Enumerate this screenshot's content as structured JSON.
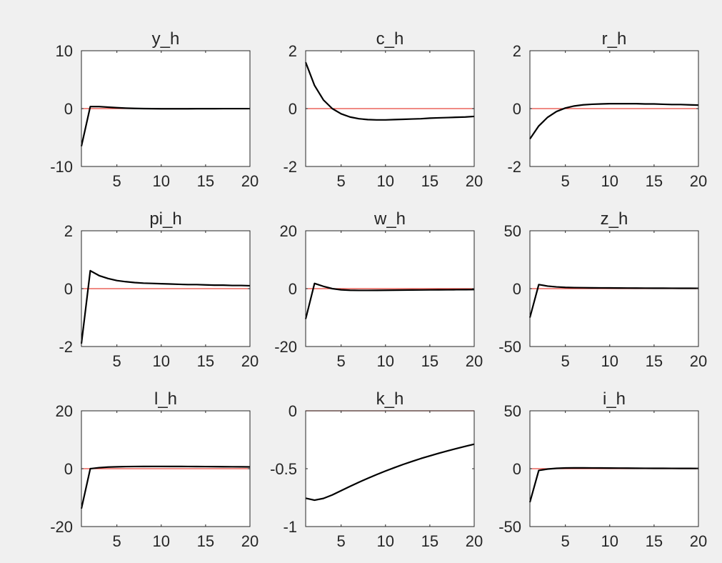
{
  "figure": {
    "background": "#f0f0f0",
    "axes_color": "#262626",
    "zero_line_color": "#e8443a",
    "series_color": "#000000"
  },
  "chart_data": [
    {
      "type": "line",
      "title": "y_h",
      "xlim": [
        1,
        20
      ],
      "ylim": [
        -10,
        10
      ],
      "xticks": [
        5,
        10,
        15,
        20
      ],
      "yticks": [
        -10,
        0,
        10
      ],
      "xtick_labels": [
        "5",
        "10",
        "15",
        "20"
      ],
      "ytick_labels": [
        "-10",
        "0",
        "10"
      ],
      "x": [
        1,
        2,
        3,
        4,
        5,
        6,
        7,
        8,
        9,
        10,
        11,
        12,
        13,
        14,
        15,
        16,
        17,
        18,
        19,
        20
      ],
      "series": [
        {
          "values": [
            -6.5,
            0.35,
            0.35,
            0.25,
            0.15,
            0.08,
            0.03,
            0.0,
            -0.02,
            -0.03,
            -0.03,
            -0.03,
            -0.03,
            -0.02,
            -0.02,
            -0.02,
            -0.01,
            -0.01,
            -0.01,
            -0.01
          ]
        },
        {
          "values": [
            0,
            0,
            0,
            0,
            0,
            0,
            0,
            0,
            0,
            0,
            0,
            0,
            0,
            0,
            0,
            0,
            0,
            0,
            0,
            0
          ],
          "role": "zero-line"
        }
      ]
    },
    {
      "type": "line",
      "title": "c_h",
      "xlim": [
        1,
        20
      ],
      "ylim": [
        -2,
        2
      ],
      "xticks": [
        5,
        10,
        15,
        20
      ],
      "yticks": [
        -2,
        0,
        2
      ],
      "xtick_labels": [
        "5",
        "10",
        "15",
        "20"
      ],
      "ytick_labels": [
        "-2",
        "0",
        "2"
      ],
      "x": [
        1,
        2,
        3,
        4,
        5,
        6,
        7,
        8,
        9,
        10,
        11,
        12,
        13,
        14,
        15,
        16,
        17,
        18,
        19,
        20
      ],
      "series": [
        {
          "values": [
            1.6,
            0.8,
            0.3,
            0.0,
            -0.18,
            -0.29,
            -0.35,
            -0.38,
            -0.39,
            -0.39,
            -0.38,
            -0.37,
            -0.36,
            -0.35,
            -0.33,
            -0.32,
            -0.31,
            -0.3,
            -0.29,
            -0.27
          ]
        },
        {
          "values": [
            0,
            0,
            0,
            0,
            0,
            0,
            0,
            0,
            0,
            0,
            0,
            0,
            0,
            0,
            0,
            0,
            0,
            0,
            0,
            0
          ],
          "role": "zero-line"
        }
      ]
    },
    {
      "type": "line",
      "title": "r_h",
      "xlim": [
        1,
        20
      ],
      "ylim": [
        -2,
        2
      ],
      "xticks": [
        5,
        10,
        15,
        20
      ],
      "yticks": [
        -2,
        0,
        2
      ],
      "xtick_labels": [
        "5",
        "10",
        "15",
        "20"
      ],
      "ytick_labels": [
        "-2",
        "0",
        "2"
      ],
      "x": [
        1,
        2,
        3,
        4,
        5,
        6,
        7,
        8,
        9,
        10,
        11,
        12,
        13,
        14,
        15,
        16,
        17,
        18,
        19,
        20
      ],
      "series": [
        {
          "values": [
            -1.05,
            -0.6,
            -0.3,
            -0.1,
            0.02,
            0.09,
            0.13,
            0.15,
            0.16,
            0.17,
            0.17,
            0.17,
            0.17,
            0.16,
            0.16,
            0.15,
            0.14,
            0.14,
            0.13,
            0.12
          ]
        },
        {
          "values": [
            0,
            0,
            0,
            0,
            0,
            0,
            0,
            0,
            0,
            0,
            0,
            0,
            0,
            0,
            0,
            0,
            0,
            0,
            0,
            0
          ],
          "role": "zero-line"
        }
      ]
    },
    {
      "type": "line",
      "title": "pi_h",
      "xlim": [
        1,
        20
      ],
      "ylim": [
        -2,
        2
      ],
      "xticks": [
        5,
        10,
        15,
        20
      ],
      "yticks": [
        -2,
        0,
        2
      ],
      "xtick_labels": [
        "5",
        "10",
        "15",
        "20"
      ],
      "ytick_labels": [
        "-2",
        "0",
        "2"
      ],
      "x": [
        1,
        2,
        3,
        4,
        5,
        6,
        7,
        8,
        9,
        10,
        11,
        12,
        13,
        14,
        15,
        16,
        17,
        18,
        19,
        20
      ],
      "series": [
        {
          "values": [
            -1.9,
            0.62,
            0.45,
            0.35,
            0.28,
            0.24,
            0.21,
            0.19,
            0.18,
            0.17,
            0.16,
            0.15,
            0.14,
            0.14,
            0.13,
            0.12,
            0.12,
            0.11,
            0.11,
            0.1
          ]
        },
        {
          "values": [
            0,
            0,
            0,
            0,
            0,
            0,
            0,
            0,
            0,
            0,
            0,
            0,
            0,
            0,
            0,
            0,
            0,
            0,
            0,
            0
          ],
          "role": "zero-line"
        }
      ]
    },
    {
      "type": "line",
      "title": "w_h",
      "xlim": [
        1,
        20
      ],
      "ylim": [
        -20,
        20
      ],
      "xticks": [
        5,
        10,
        15,
        20
      ],
      "yticks": [
        -20,
        0,
        20
      ],
      "xtick_labels": [
        "5",
        "10",
        "15",
        "20"
      ],
      "ytick_labels": [
        "-20",
        "0",
        "20"
      ],
      "x": [
        1,
        2,
        3,
        4,
        5,
        6,
        7,
        8,
        9,
        10,
        11,
        12,
        13,
        14,
        15,
        16,
        17,
        18,
        19,
        20
      ],
      "series": [
        {
          "values": [
            -10.5,
            1.8,
            0.8,
            0.0,
            -0.4,
            -0.55,
            -0.6,
            -0.6,
            -0.58,
            -0.55,
            -0.52,
            -0.5,
            -0.47,
            -0.45,
            -0.42,
            -0.4,
            -0.38,
            -0.36,
            -0.34,
            -0.32
          ]
        },
        {
          "values": [
            0,
            0,
            0,
            0,
            0,
            0,
            0,
            0,
            0,
            0,
            0,
            0,
            0,
            0,
            0,
            0,
            0,
            0,
            0,
            0
          ],
          "role": "zero-line"
        }
      ]
    },
    {
      "type": "line",
      "title": "z_h",
      "xlim": [
        1,
        20
      ],
      "ylim": [
        -50,
        50
      ],
      "xticks": [
        5,
        10,
        15,
        20
      ],
      "yticks": [
        -50,
        0,
        50
      ],
      "xtick_labels": [
        "5",
        "10",
        "15",
        "20"
      ],
      "ytick_labels": [
        "-50",
        "0",
        "50"
      ],
      "x": [
        1,
        2,
        3,
        4,
        5,
        6,
        7,
        8,
        9,
        10,
        11,
        12,
        13,
        14,
        15,
        16,
        17,
        18,
        19,
        20
      ],
      "series": [
        {
          "values": [
            -25,
            3.5,
            2.2,
            1.5,
            1.1,
            0.9,
            0.8,
            0.7,
            0.65,
            0.6,
            0.55,
            0.5,
            0.45,
            0.42,
            0.4,
            0.37,
            0.35,
            0.32,
            0.3,
            0.28
          ]
        },
        {
          "values": [
            0,
            0,
            0,
            0,
            0,
            0,
            0,
            0,
            0,
            0,
            0,
            0,
            0,
            0,
            0,
            0,
            0,
            0,
            0,
            0
          ],
          "role": "zero-line"
        }
      ]
    },
    {
      "type": "line",
      "title": "l_h",
      "xlim": [
        1,
        20
      ],
      "ylim": [
        -20,
        20
      ],
      "xticks": [
        5,
        10,
        15,
        20
      ],
      "yticks": [
        -20,
        0,
        20
      ],
      "xtick_labels": [
        "5",
        "10",
        "15",
        "20"
      ],
      "ytick_labels": [
        "-20",
        "0",
        "20"
      ],
      "x": [
        1,
        2,
        3,
        4,
        5,
        6,
        7,
        8,
        9,
        10,
        11,
        12,
        13,
        14,
        15,
        16,
        17,
        18,
        19,
        20
      ],
      "series": [
        {
          "values": [
            -13.8,
            0.0,
            0.35,
            0.55,
            0.65,
            0.72,
            0.76,
            0.78,
            0.79,
            0.79,
            0.78,
            0.77,
            0.76,
            0.74,
            0.72,
            0.7,
            0.68,
            0.66,
            0.64,
            0.62
          ]
        },
        {
          "values": [
            0,
            0,
            0,
            0,
            0,
            0,
            0,
            0,
            0,
            0,
            0,
            0,
            0,
            0,
            0,
            0,
            0,
            0,
            0,
            0
          ],
          "role": "zero-line"
        }
      ]
    },
    {
      "type": "line",
      "title": "k_h",
      "xlim": [
        1,
        20
      ],
      "ylim": [
        -1,
        0
      ],
      "xticks": [
        5,
        10,
        15,
        20
      ],
      "yticks": [
        -1,
        -0.5,
        0
      ],
      "xtick_labels": [
        "5",
        "10",
        "15",
        "20"
      ],
      "ytick_labels": [
        "-1",
        "-0.5",
        "0"
      ],
      "x": [
        1,
        2,
        3,
        4,
        5,
        6,
        7,
        8,
        9,
        10,
        11,
        12,
        13,
        14,
        15,
        16,
        17,
        18,
        19,
        20
      ],
      "series": [
        {
          "values": [
            -0.755,
            -0.772,
            -0.757,
            -0.727,
            -0.69,
            -0.653,
            -0.617,
            -0.583,
            -0.551,
            -0.52,
            -0.491,
            -0.463,
            -0.437,
            -0.412,
            -0.389,
            -0.367,
            -0.346,
            -0.326,
            -0.307,
            -0.288
          ]
        },
        {
          "values": [
            0,
            0,
            0,
            0,
            0,
            0,
            0,
            0,
            0,
            0,
            0,
            0,
            0,
            0,
            0,
            0,
            0,
            0,
            0,
            0
          ],
          "role": "zero-line"
        }
      ]
    },
    {
      "type": "line",
      "title": "i_h",
      "xlim": [
        1,
        20
      ],
      "ylim": [
        -50,
        50
      ],
      "xticks": [
        5,
        10,
        15,
        20
      ],
      "yticks": [
        -50,
        0,
        50
      ],
      "xtick_labels": [
        "5",
        "10",
        "15",
        "20"
      ],
      "ytick_labels": [
        "-50",
        "0",
        "50"
      ],
      "x": [
        1,
        2,
        3,
        4,
        5,
        6,
        7,
        8,
        9,
        10,
        11,
        12,
        13,
        14,
        15,
        16,
        17,
        18,
        19,
        20
      ],
      "series": [
        {
          "values": [
            -29,
            -1.5,
            -0.3,
            0.3,
            0.6,
            0.7,
            0.7,
            0.65,
            0.6,
            0.55,
            0.5,
            0.45,
            0.4,
            0.36,
            0.33,
            0.3,
            0.27,
            0.24,
            0.22,
            0.2
          ]
        },
        {
          "values": [
            0,
            0,
            0,
            0,
            0,
            0,
            0,
            0,
            0,
            0,
            0,
            0,
            0,
            0,
            0,
            0,
            0,
            0,
            0,
            0
          ],
          "role": "zero-line"
        }
      ]
    }
  ]
}
